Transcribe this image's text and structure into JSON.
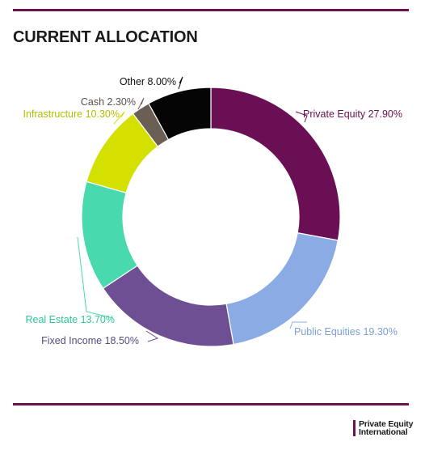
{
  "header": {
    "title": "CURRENT ALLOCATION"
  },
  "brand": {
    "line1": "Private Equity",
    "line2": "International"
  },
  "colors": {
    "rule": "#6a1253"
  },
  "chart_data": {
    "type": "pie",
    "style": "donut",
    "title": "CURRENT ALLOCATION",
    "unit": "%",
    "slices": [
      {
        "label": "Private Equity",
        "value": 27.9,
        "display": "Private Equity 27.90%",
        "color": "#6b0f55",
        "text_color": "#6b0f55"
      },
      {
        "label": "Public Equities",
        "value": 19.3,
        "display": "Public Equities 19.30%",
        "color": "#8aabe3",
        "text_color": "#7b9fd6"
      },
      {
        "label": "Fixed Income",
        "value": 18.5,
        "display": "Fixed Income 18.50%",
        "color": "#6e4f93",
        "text_color": "#5a4a7e"
      },
      {
        "label": "Real Estate",
        "value": 13.7,
        "display": "Real Estate 13.70%",
        "color": "#48d9ae",
        "text_color": "#2ec79b"
      },
      {
        "label": "Infrastructure",
        "value": 10.3,
        "display": "Infrastructure 10.30%",
        "color": "#d4e000",
        "text_color": "#b3bd00"
      },
      {
        "label": "Cash",
        "value": 2.3,
        "display": "Cash 2.30%",
        "color": "#6b5f55",
        "text_color": "#5a5048"
      },
      {
        "label": "Other",
        "value": 8.0,
        "display": "Other 8.00%",
        "color": "#050505",
        "text_color": "#111111"
      }
    ]
  }
}
